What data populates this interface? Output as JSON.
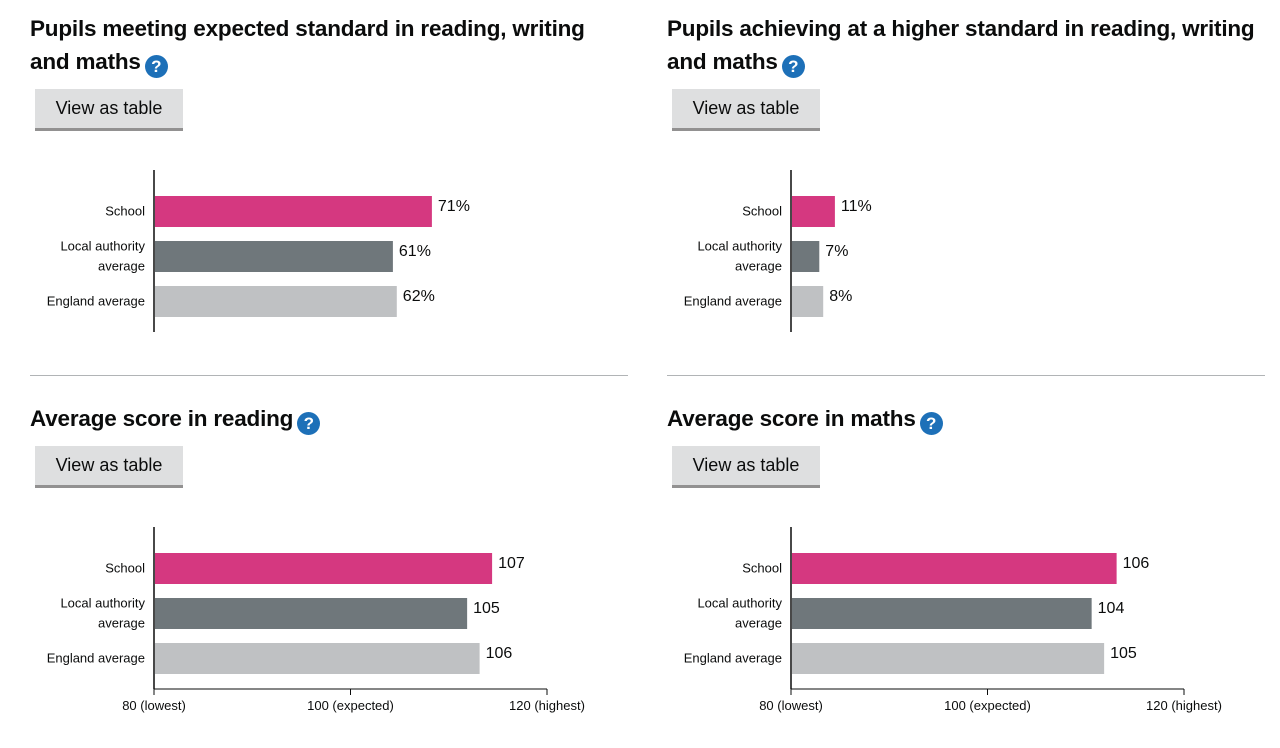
{
  "button_label": "View as table",
  "help_symbol": "?",
  "colors": {
    "school": "#d53880",
    "local": "#6f777b",
    "england": "#bfc1c3",
    "axis": "#0b0c0c",
    "help": "#1d70b8"
  },
  "panels": [
    {
      "title": "Pupils meeting expected standard in reading, writing and maths"
    },
    {
      "title": "Pupils achieving at a higher standard in reading, writing and maths"
    },
    {
      "title": "Average score in reading"
    },
    {
      "title": "Average score in maths"
    }
  ],
  "chart_data": [
    {
      "type": "bar",
      "orientation": "horizontal",
      "title": "Pupils meeting expected standard in reading, writing and maths",
      "categories": [
        [
          "School"
        ],
        [
          "Local authority",
          "average"
        ],
        [
          "England average"
        ]
      ],
      "series_keys": [
        "school",
        "local",
        "england"
      ],
      "values": [
        71,
        61,
        62
      ],
      "value_labels": [
        "71%",
        "61%",
        "62%"
      ],
      "xlim": [
        0,
        100
      ],
      "x_ticks": []
    },
    {
      "type": "bar",
      "orientation": "horizontal",
      "title": "Pupils achieving at a higher standard in reading, writing and maths",
      "categories": [
        [
          "School"
        ],
        [
          "Local authority",
          "average"
        ],
        [
          "England average"
        ]
      ],
      "series_keys": [
        "school",
        "local",
        "england"
      ],
      "values": [
        11,
        7,
        8
      ],
      "value_labels": [
        "11%",
        "7%",
        "8%"
      ],
      "xlim": [
        0,
        100
      ],
      "x_ticks": []
    },
    {
      "type": "bar",
      "orientation": "horizontal",
      "title": "Average score in reading",
      "categories": [
        [
          "School"
        ],
        [
          "Local authority",
          "average"
        ],
        [
          "England average"
        ]
      ],
      "series_keys": [
        "school",
        "local",
        "england"
      ],
      "values": [
        107,
        105,
        106
      ],
      "value_labels": [
        "107",
        "105",
        "106"
      ],
      "xlim": [
        80,
        120
      ],
      "x_ticks": [
        {
          "value": 80,
          "label": "80 (lowest)"
        },
        {
          "value": 100,
          "label": "100 (expected)"
        },
        {
          "value": 120,
          "label": "120 (highest)"
        }
      ]
    },
    {
      "type": "bar",
      "orientation": "horizontal",
      "title": "Average score in maths",
      "categories": [
        [
          "School"
        ],
        [
          "Local authority",
          "average"
        ],
        [
          "England average"
        ]
      ],
      "series_keys": [
        "school",
        "local",
        "england"
      ],
      "values": [
        106,
        104,
        105
      ],
      "value_labels": [
        "106",
        "104",
        "105"
      ],
      "xlim": [
        80,
        120
      ],
      "x_ticks": [
        {
          "value": 80,
          "label": "80 (lowest)"
        },
        {
          "value": 100,
          "label": "100 (expected)"
        },
        {
          "value": 120,
          "label": "120 (highest)"
        }
      ]
    }
  ]
}
